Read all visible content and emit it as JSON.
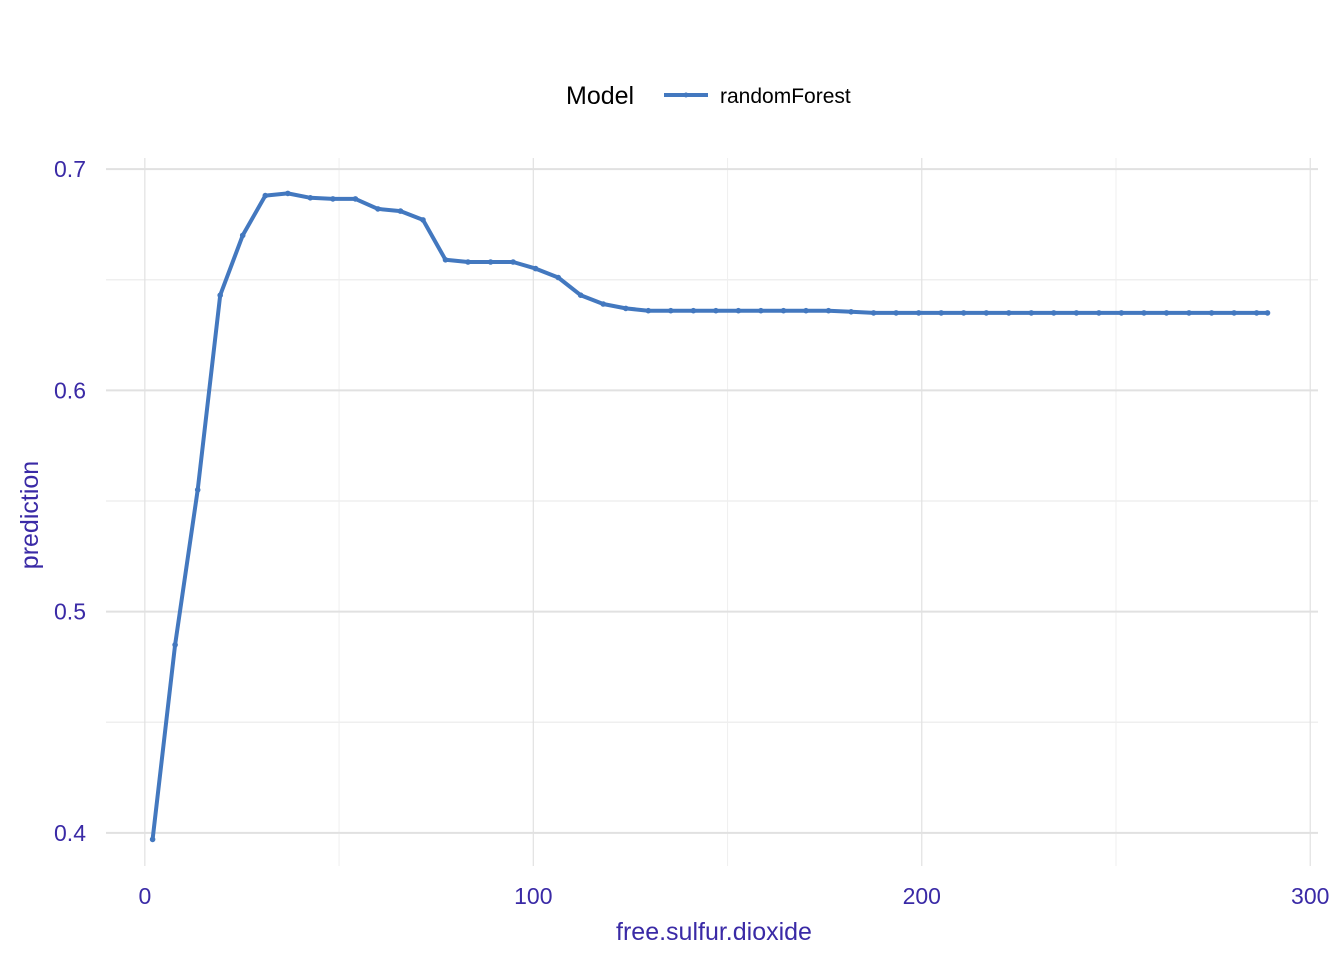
{
  "chart_data": {
    "type": "line",
    "title": "",
    "xlabel": "free.sulfur.dioxide",
    "ylabel": "prediction",
    "xlim": [
      -10,
      302
    ],
    "ylim": [
      0.385,
      0.705
    ],
    "x_ticks": [
      0,
      100,
      200,
      300
    ],
    "x_tick_labels": [
      "0",
      "100",
      "200",
      "300"
    ],
    "y_ticks": [
      0.4,
      0.5,
      0.6,
      0.7
    ],
    "y_tick_labels": [
      "0.4",
      "0.5",
      "0.6",
      "0.7"
    ],
    "grid": true,
    "legend": {
      "title": "Model",
      "position": "top"
    },
    "series": [
      {
        "name": "randomForest",
        "color": "#4378bf",
        "x": [
          2,
          7.8,
          13.6,
          19.4,
          25.2,
          31,
          36.8,
          42.6,
          48.4,
          54.2,
          60,
          65.8,
          71.6,
          77.4,
          83.2,
          89,
          94.8,
          100.6,
          106.4,
          112.2,
          118,
          123.8,
          129.6,
          135.4,
          141.2,
          147,
          152.8,
          158.6,
          164.4,
          170.2,
          176,
          181.8,
          187.6,
          193.4,
          199.2,
          205,
          210.8,
          216.6,
          222.4,
          228.2,
          234,
          239.8,
          245.6,
          251.4,
          257.2,
          263,
          268.8,
          274.6,
          280.4,
          286.2,
          289
        ],
        "y": [
          0.397,
          0.485,
          0.555,
          0.643,
          0.67,
          0.688,
          0.689,
          0.687,
          0.6865,
          0.6865,
          0.682,
          0.681,
          0.677,
          0.659,
          0.658,
          0.658,
          0.658,
          0.655,
          0.651,
          0.643,
          0.639,
          0.637,
          0.636,
          0.636,
          0.636,
          0.636,
          0.636,
          0.636,
          0.636,
          0.636,
          0.636,
          0.6355,
          0.635,
          0.635,
          0.635,
          0.635,
          0.635,
          0.635,
          0.635,
          0.635,
          0.635,
          0.635,
          0.635,
          0.635,
          0.635,
          0.635,
          0.635,
          0.635,
          0.635,
          0.635,
          0.635
        ]
      }
    ]
  },
  "colors": {
    "axis_text": "#3a2aa6",
    "grid_major": "#e1e1e1",
    "grid_minor": "#efefef",
    "line": "#4378bf"
  }
}
